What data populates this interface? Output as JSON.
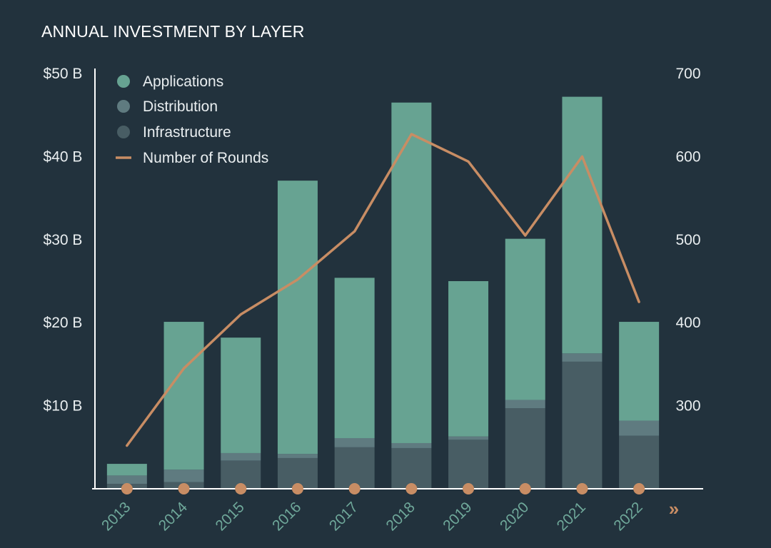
{
  "chart_data": {
    "type": "bar",
    "stacked": true,
    "title": "ANNUAL INVESTMENT BY LAYER",
    "categories": [
      "2013",
      "2014",
      "2015",
      "2016",
      "2017",
      "2018",
      "2019",
      "2020",
      "2021",
      "2022"
    ],
    "series": [
      {
        "name": "Infrastructure",
        "color": "#485d64",
        "values": [
          0.6,
          0.8,
          3.4,
          3.7,
          5.0,
          4.9,
          5.9,
          9.7,
          15.3,
          6.4
        ]
      },
      {
        "name": "Distribution",
        "color": "#5f7b80",
        "values": [
          1.0,
          1.5,
          0.9,
          0.5,
          1.1,
          0.6,
          0.4,
          1.0,
          1.0,
          1.8
        ]
      },
      {
        "name": "Applications",
        "color": "#67a392",
        "values": [
          1.4,
          17.8,
          13.9,
          32.9,
          19.3,
          41.0,
          18.7,
          19.4,
          30.9,
          11.9
        ]
      }
    ],
    "line_series": {
      "name": "Number of Rounds",
      "color": "#c88d64",
      "values": [
        252,
        345,
        410,
        452,
        510,
        627,
        594,
        505,
        600,
        425
      ]
    },
    "y_left": {
      "ylim": [
        0,
        50
      ],
      "ticks": [
        10,
        20,
        30,
        40,
        50
      ],
      "tick_labels": [
        "$10 B",
        "$20 B",
        "$30 B",
        "$40 B",
        "$50 B"
      ]
    },
    "y_right": {
      "ylim": [
        200,
        700
      ],
      "ticks": [
        300,
        400,
        500,
        600,
        700
      ],
      "tick_labels": [
        "300",
        "400",
        "500",
        "600",
        "700"
      ]
    },
    "legend": {
      "position": "top-left",
      "entries": [
        {
          "label": "Applications",
          "kind": "dot",
          "color": "#67a392"
        },
        {
          "label": "Distribution",
          "kind": "dot",
          "color": "#5f7b80"
        },
        {
          "label": "Infrastructure",
          "kind": "dot",
          "color": "#485d64"
        },
        {
          "label": "Number of Rounds",
          "kind": "line",
          "color": "#c88d64"
        }
      ]
    },
    "axis_markers": {
      "color": "#c88d64",
      "more_indicator": "»"
    }
  }
}
